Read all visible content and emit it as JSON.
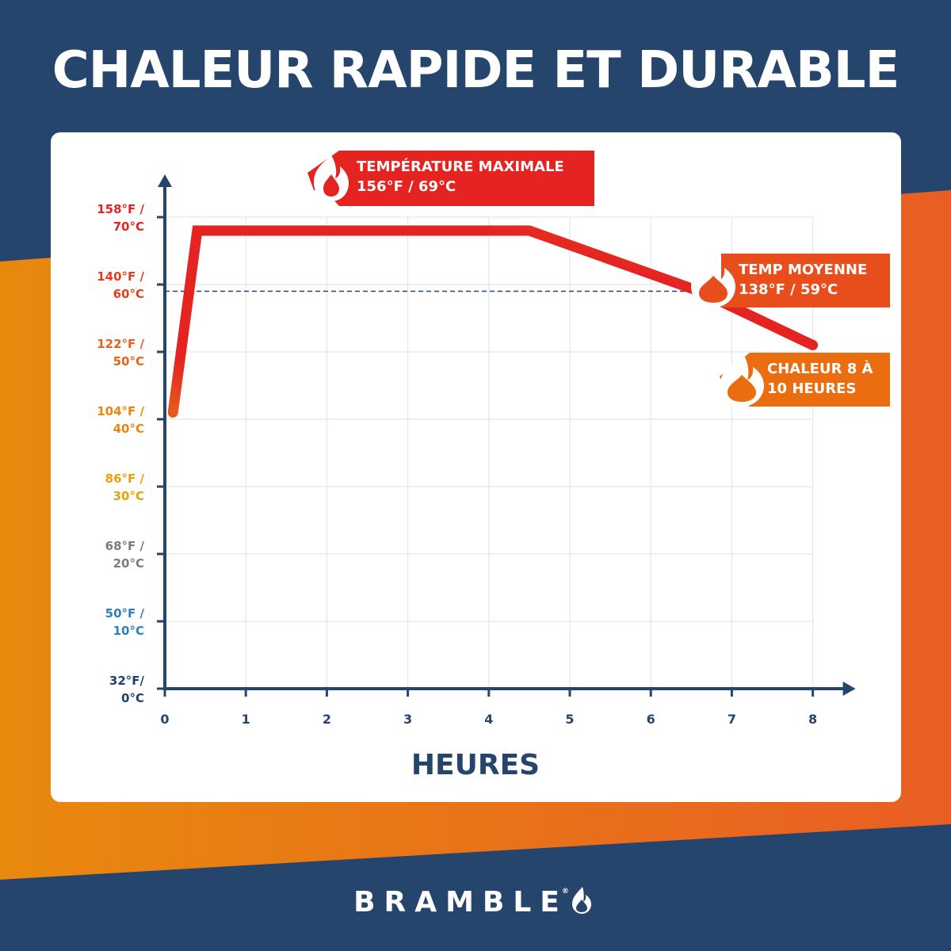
{
  "title": "CHALEUR RAPIDE ET DURABLE",
  "brand": {
    "name": "BRAMBLE",
    "mark": "®",
    "icon": "flame-icon"
  },
  "colors": {
    "navy": "#26456d",
    "orange_light": "#e8890d",
    "orange_dark": "#e95e23",
    "red": "#e52421",
    "grid": "#e3e6ec",
    "axis": "#26456d"
  },
  "callouts": {
    "max": {
      "line1": "TEMPÉRATURE MAXIMALE",
      "line2": "156°F / 69°C",
      "color": "#e52421",
      "icon": "flame-icon"
    },
    "avg": {
      "line1": "TEMP MOYENNE",
      "line2": "138°F / 59°C",
      "color": "#e84e1b",
      "icon": "flame-icon"
    },
    "duration": {
      "line1": "CHALEUR 8 À",
      "line2": "10 HEURES",
      "color": "#ea6d10",
      "icon": "flame-icon"
    }
  },
  "chart_data": {
    "type": "line",
    "xlabel": "HEURES",
    "ylabel": "",
    "xlim": [
      0,
      8
    ],
    "ylim": [
      0,
      70
    ],
    "x_ticks": [
      0,
      1,
      2,
      3,
      4,
      5,
      6,
      7,
      8
    ],
    "y_ticks": [
      {
        "value": 0,
        "line1": "32°F/",
        "line2": "0°C",
        "color": "#1f3f6e"
      },
      {
        "value": 10,
        "line1": "50°F /",
        "line2": "10°C",
        "color": "#2f7fbf"
      },
      {
        "value": 20,
        "line1": "68°F /",
        "line2": "20°C",
        "color": "#7f7a7c"
      },
      {
        "value": 30,
        "line1": "86°F /",
        "line2": "30°C",
        "color": "#e8a00a"
      },
      {
        "value": 40,
        "line1": "104°F /",
        "line2": "40°C",
        "color": "#e8860d"
      },
      {
        "value": 50,
        "line1": "122°F /",
        "line2": "50°C",
        "color": "#e7621b"
      },
      {
        "value": 60,
        "line1": "140°F /",
        "line2": "60°C",
        "color": "#e43f1d"
      },
      {
        "value": 70,
        "line1": "158°F /",
        "line2": "70°C",
        "color": "#e52421"
      }
    ],
    "grid": true,
    "series": [
      {
        "values": [
          {
            "x": 0.1,
            "y": 41
          },
          {
            "x": 0.4,
            "y": 68
          },
          {
            "x": 4.5,
            "y": 68
          },
          {
            "x": 6.6,
            "y": 59
          },
          {
            "x": 8.0,
            "y": 51
          }
        ]
      }
    ],
    "reference_line": {
      "y": 59,
      "style": "dashed"
    }
  }
}
